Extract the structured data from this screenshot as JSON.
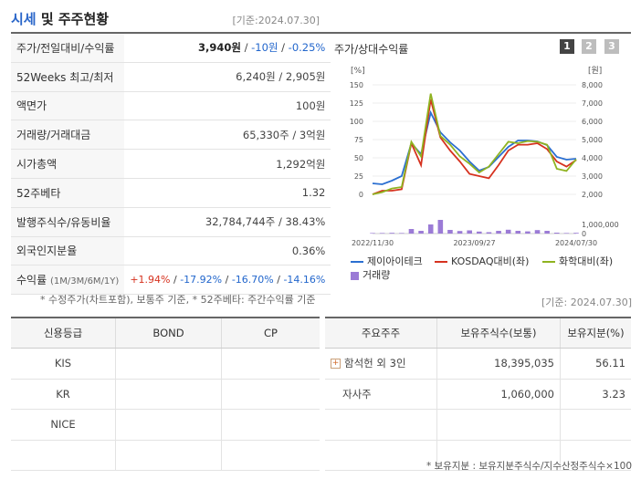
{
  "header": {
    "title_a": "시세",
    "title_b": " 및 주주현황",
    "ref_date": "[기준:2024.07.30]"
  },
  "stats": [
    {
      "key": "주가/전일대비/수익률",
      "price": "3,940원",
      "sep1": " / ",
      "change": "-10원",
      "sep2": " / ",
      "pct": "-0.25%"
    },
    {
      "key": "52Weeks 최고/최저",
      "value": "6,240원 / 2,905원"
    },
    {
      "key": "액면가",
      "value": "100원"
    },
    {
      "key": "거래량/거래대금",
      "value": "65,330주 / 3억원"
    },
    {
      "key": "시가총액",
      "value": "1,292억원"
    },
    {
      "key": "52주베타",
      "value": "1.32"
    },
    {
      "key": "발행주식수/유동비율",
      "value": "32,784,744주 / 38.43%"
    },
    {
      "key": "외국인지분율",
      "value": "0.36%"
    },
    {
      "key": "수익률",
      "key_sub": "(1M/3M/6M/1Y)",
      "r1": "+1.94%",
      "r2": "-17.92%",
      "r3": "-16.70%",
      "r4": "-14.16%"
    }
  ],
  "note1": "* 수정주가(차트포함), 보통주 기준, * 52주베타: 주간수익률 기준",
  "chart_panel": {
    "title": "주가/상대수익률",
    "pages": [
      "1",
      "2",
      "3"
    ],
    "left_unit": "[%]",
    "right_unit": "[원]",
    "legend": [
      {
        "label": "제이아이테크",
        "color": "#2b6fd1"
      },
      {
        "label": "KOSDAQ대비(좌)",
        "color": "#d6321f"
      },
      {
        "label": "화학대비(좌)",
        "color": "#8fb320"
      },
      {
        "label": "거래량",
        "color": "#9b7bd6"
      }
    ]
  },
  "chart_data": {
    "type": "line",
    "x_ticks": [
      "2022/11/30",
      "2023/09/27",
      "2024/07/30"
    ],
    "left_axis": {
      "label": "[%]",
      "ticks": [
        0,
        25,
        50,
        75,
        100,
        125,
        150
      ],
      "ylim": [
        0,
        150
      ]
    },
    "right_axis": {
      "label": "[원]",
      "ticks": [
        "2,000",
        "3,000",
        "4,000",
        "5,000",
        "6,000",
        "7,000",
        "8,000"
      ],
      "ylim": [
        2000,
        8000
      ]
    },
    "volume_axis": {
      "ticks": [
        "0",
        "1,000,000"
      ],
      "ylim": [
        0,
        2000000
      ]
    },
    "series": [
      {
        "name": "제이아이테크",
        "axis": "price",
        "color": "#2b6fd1",
        "values": [
          2600,
          2550,
          2750,
          3000,
          4800,
          4200,
          6480,
          5400,
          4850,
          4400,
          3800,
          3300,
          3500,
          4050,
          4600,
          4950,
          4950,
          4900,
          4700,
          4050,
          3900,
          3950
        ]
      },
      {
        "name": "KOSDAQ대비(좌)",
        "color": "#d6321f",
        "values": [
          0,
          5,
          5,
          7,
          70,
          40,
          130,
          78,
          60,
          45,
          28,
          25,
          22,
          40,
          60,
          68,
          68,
          70,
          62,
          45,
          38,
          47
        ]
      },
      {
        "name": "화학대비(좌)",
        "color": "#8fb320",
        "values": [
          0,
          3,
          8,
          10,
          72,
          52,
          138,
          80,
          68,
          52,
          42,
          30,
          38,
          55,
          72,
          70,
          73,
          72,
          68,
          35,
          32,
          48
        ]
      },
      {
        "name": "거래량",
        "type": "bar",
        "color": "#9b7bd6",
        "values": [
          60000,
          60000,
          80000,
          60000,
          500000,
          300000,
          1000000,
          1500000,
          400000,
          280000,
          350000,
          220000,
          150000,
          300000,
          420000,
          300000,
          240000,
          380000,
          300000,
          100000,
          60000,
          80000
        ]
      }
    ]
  },
  "ref_date2": "[기준: 2024.07.30]",
  "credit": {
    "headers": [
      "신용등급",
      "BOND",
      "CP"
    ],
    "rows": [
      [
        "KIS",
        "",
        ""
      ],
      [
        "KR",
        "",
        ""
      ],
      [
        "NICE",
        "",
        ""
      ],
      [
        "",
        "",
        ""
      ]
    ]
  },
  "holders": {
    "headers": [
      "주요주주",
      "보유주식수(보통)",
      "보유지분(%)"
    ],
    "rows": [
      {
        "name": "함석헌 외 3인",
        "expand": "+",
        "shares": "18,395,035",
        "pct": "56.11"
      },
      {
        "name": "자사주",
        "shares": "1,060,000",
        "pct": "3.23"
      },
      {
        "name": "",
        "shares": "",
        "pct": ""
      },
      {
        "name": "",
        "shares": "",
        "pct": ""
      }
    ]
  },
  "note2": "* 보유지분 : 보유지분주식수/지수산정주식수×100"
}
